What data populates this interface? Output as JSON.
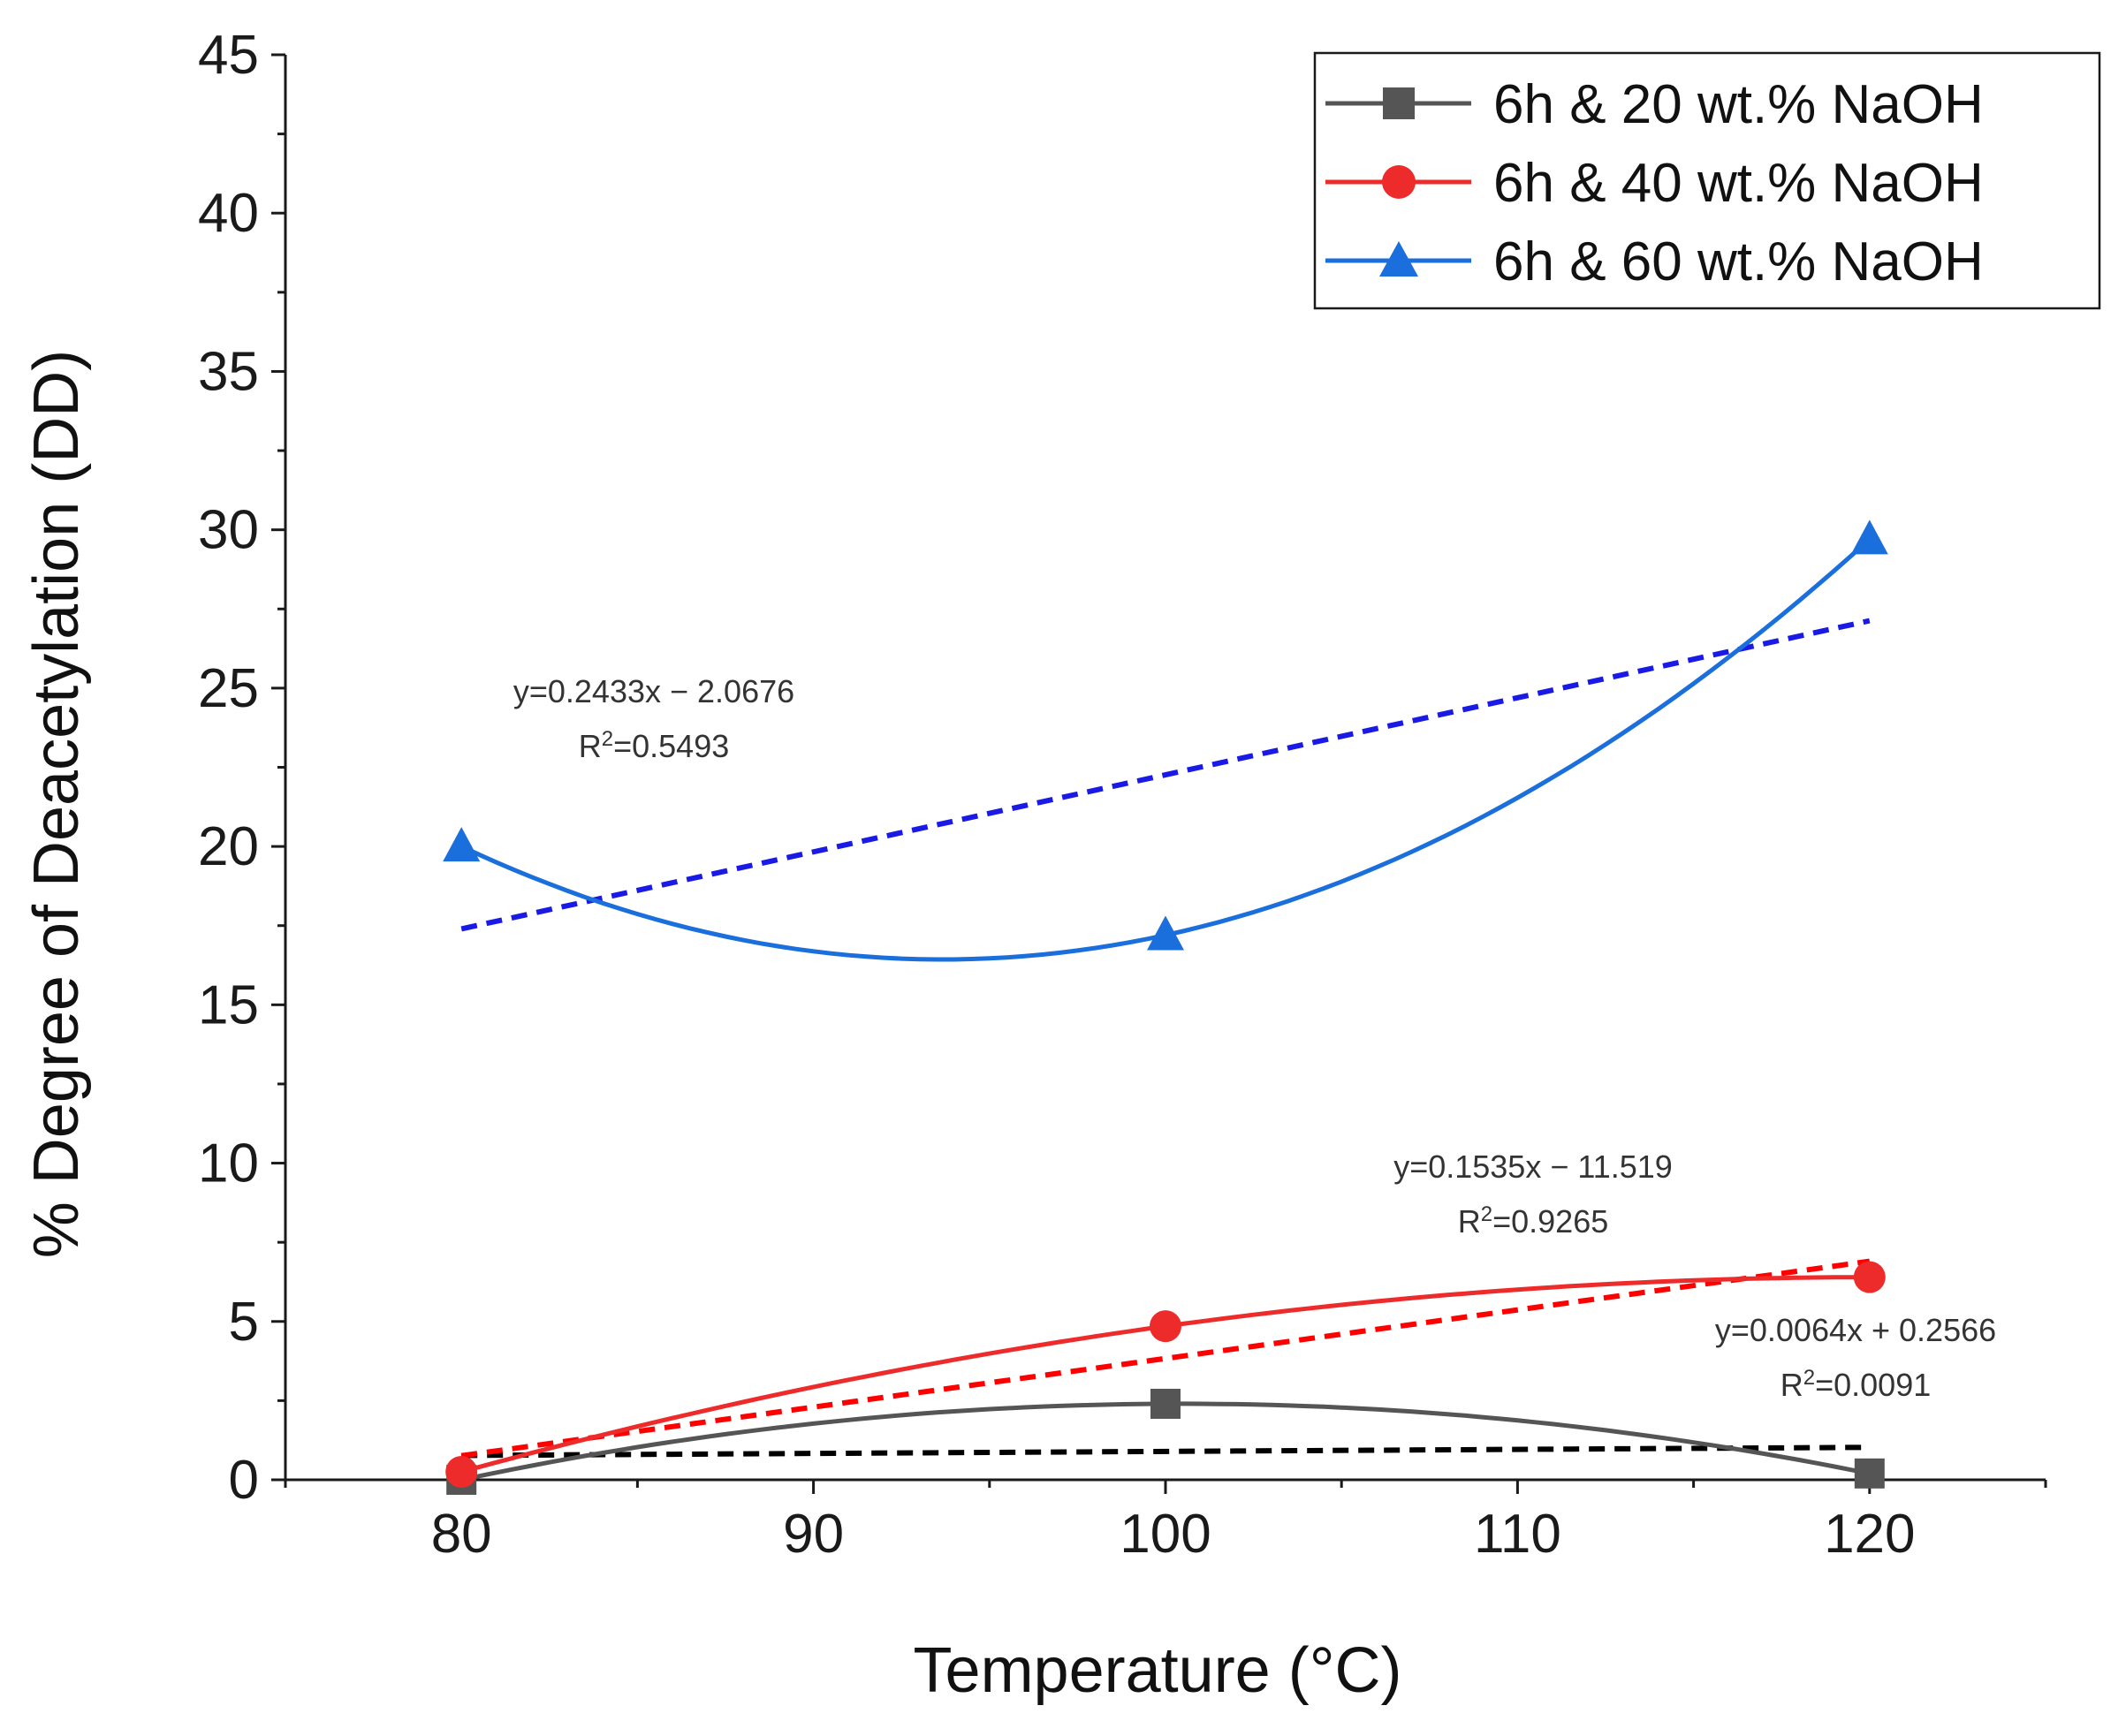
{
  "chart_data": {
    "type": "line",
    "title": "",
    "xlabel": "Temperature (°C)",
    "ylabel": "% Degree of Deacetylation (DD)",
    "xlim": [
      75,
      125
    ],
    "ylim": [
      0,
      45
    ],
    "xticks": [
      80,
      90,
      100,
      110,
      120
    ],
    "yticks": [
      0,
      5,
      10,
      15,
      20,
      25,
      30,
      35,
      40,
      45
    ],
    "x": [
      80,
      100,
      120
    ],
    "series": [
      {
        "name": "6h & 20 wt.% NaOH",
        "values": [
          0.0,
          2.4,
          0.2
        ],
        "color": "#555555",
        "marker": "square",
        "trend": {
          "slope": 0.0064,
          "intercept": 0.2566,
          "equation": "y=0.0064x + 0.2566",
          "r2_prefix": "R",
          "r2_exp": "2",
          "r2_value": "=0.0091",
          "color": "#000000"
        }
      },
      {
        "name": "6h & 40 wt.% NaOH",
        "values": [
          0.25,
          4.85,
          6.4
        ],
        "color": "#ee2b2b",
        "marker": "circle",
        "trend": {
          "slope": 0.1535,
          "intercept": -11.519,
          "equation": "y=0.1535x − 11.519",
          "r2_prefix": "R",
          "r2_exp": "2",
          "r2_value": "=0.9265",
          "color": "#ff0000"
        }
      },
      {
        "name": "6h & 60 wt.% NaOH",
        "values": [
          20.0,
          17.2,
          29.7
        ],
        "color": "#1a6fdc",
        "marker": "triangle",
        "trend": {
          "slope": 0.2433,
          "intercept": -2.0676,
          "equation": "y=0.2433x − 2.0676",
          "r2_prefix": "R",
          "r2_exp": "2",
          "r2_value": "=0.5493",
          "color": "#1a1ae6"
        }
      }
    ],
    "legend_position": "top-right",
    "grid": false
  }
}
